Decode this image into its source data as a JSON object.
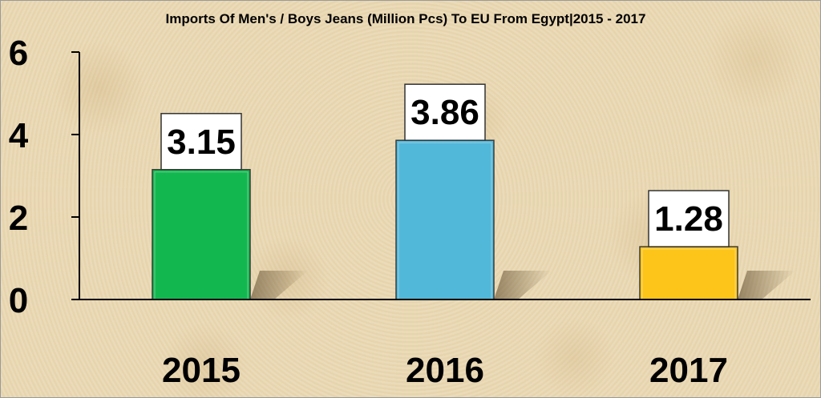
{
  "chart_data": {
    "type": "bar",
    "title": "Imports Of Men's / Boys Jeans (Million Pcs) To EU From Egypt|2015 - 2017",
    "categories": [
      "2015",
      "2016",
      "2017"
    ],
    "values": [
      3.15,
      3.86,
      1.28
    ],
    "data_labels": [
      "3.15",
      "3.86",
      "1.28"
    ],
    "bar_colors": [
      "#12b84f",
      "#52b8da",
      "#fdc41a"
    ],
    "xlabel": "",
    "ylabel": "",
    "ylim": [
      0,
      6
    ],
    "yticks": [
      0,
      2,
      4,
      6
    ],
    "grid": false,
    "legend": "none"
  },
  "colors": {
    "background": "#ead9b4",
    "axis": "#000000",
    "label_box": "#ffffff"
  }
}
